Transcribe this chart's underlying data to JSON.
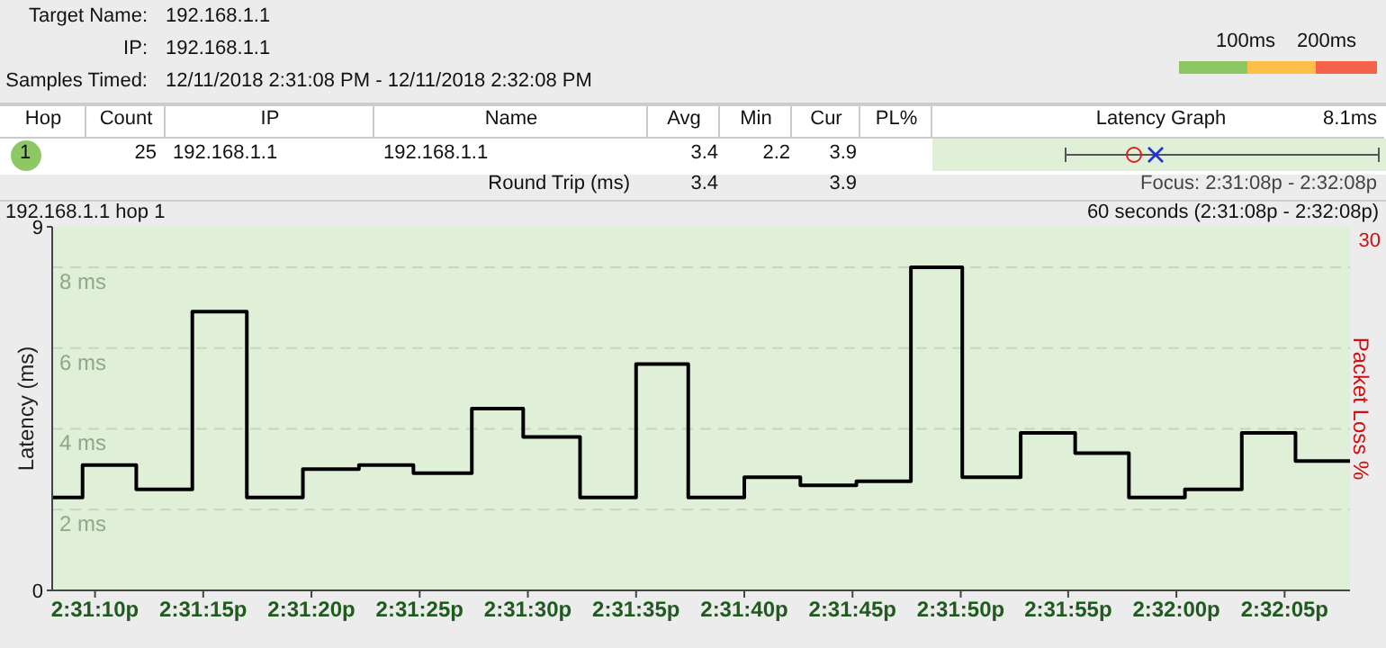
{
  "chart_data": {
    "type": "step",
    "title": "192.168.1.1 hop 1",
    "subtitle": "60 seconds (2:31:08p - 2:32:08p)",
    "ylabel": "Latency (ms)",
    "y2label": "Packet Loss %",
    "x": [
      14.51889,
      14.51928,
      14.51997,
      14.52069,
      14.52139,
      14.52211,
      14.52283,
      14.52353,
      14.52428,
      14.52494,
      14.52567,
      14.52639,
      14.52706,
      14.52778,
      14.5285,
      14.52922,
      14.52992,
      14.53058,
      14.53133,
      14.53203,
      14.53272,
      14.53344,
      14.53417,
      14.53486,
      14.53556
    ],
    "series": [
      {
        "color": "#000000",
        "values": [
          2.3,
          3.1,
          2.5,
          6.9,
          2.3,
          3.0,
          3.1,
          2.9,
          4.5,
          3.8,
          2.3,
          5.6,
          2.3,
          2.8,
          2.6,
          2.7,
          8.0,
          2.8,
          3.9,
          3.4,
          2.3,
          2.5,
          3.9,
          3.2,
          3.2
        ]
      }
    ],
    "xlim": [
      14.51889,
      14.53556
    ],
    "xticks": [
      {
        "value": 14.51944,
        "label": "2:31:10p"
      },
      {
        "value": 14.52083,
        "label": "2:31:15p"
      },
      {
        "value": 14.52222,
        "label": "2:31:20p"
      },
      {
        "value": 14.52361,
        "label": "2:31:25p"
      },
      {
        "value": 14.525,
        "label": "2:31:30p"
      },
      {
        "value": 14.52639,
        "label": "2:31:35p"
      },
      {
        "value": 14.52778,
        "label": "2:31:40p"
      },
      {
        "value": 14.52917,
        "label": "2:31:45p"
      },
      {
        "value": 14.53056,
        "label": "2:31:50p"
      },
      {
        "value": 14.53194,
        "label": "2:31:55p"
      },
      {
        "value": 14.53333,
        "label": "2:32:00p"
      },
      {
        "value": 14.53472,
        "label": "2:32:05p"
      }
    ],
    "ylim": [
      0,
      9
    ],
    "yticks": [
      0,
      9
    ],
    "ref_lines": [
      {
        "axis": "y",
        "value": 2,
        "label": "2 ms",
        "color": "#c8d4c2",
        "line_style": "dashed"
      },
      {
        "axis": "y",
        "value": 4,
        "label": "4 ms",
        "color": "#c8d4c2",
        "line_style": "dashed"
      },
      {
        "axis": "y",
        "value": 6,
        "label": "6 ms",
        "color": "#c8d4c2",
        "line_style": "dashed"
      },
      {
        "axis": "y",
        "value": 8,
        "label": "8 ms",
        "color": "#c8d4c2",
        "line_style": "dashed"
      }
    ],
    "annotations": [
      "Target Name:",
      "192.168.1.1",
      "IP:",
      "192.168.1.1",
      "Samples Timed:",
      "12/11/2018 2:31:08 PM - 12/11/2018 2:32:08 PM",
      "100ms",
      "200ms",
      "Hop",
      "Count",
      "IP",
      "Name",
      "Avg",
      "Min",
      "Cur",
      "PL%",
      "Latency Graph",
      "8.1ms",
      "1",
      "25",
      "192.168.1.1",
      "192.168.1.1",
      "3.4",
      "2.2",
      "3.9",
      "Round Trip (ms)",
      "3.4",
      "3.9",
      "Focus: 2:31:08p - 2:32:08p",
      "30"
    ]
  }
}
